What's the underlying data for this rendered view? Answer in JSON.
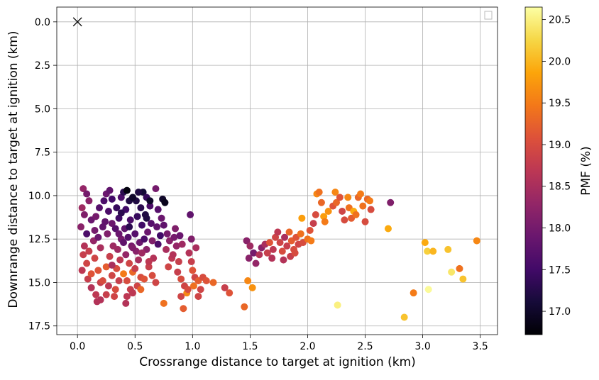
{
  "chart_data": {
    "type": "scatter",
    "title": "",
    "xlabel": "Crossrange distance to target at ignition (km)",
    "ylabel": "Downrange distance to target at ignition (km)",
    "xlim": [
      -0.18,
      3.65
    ],
    "ylim": [
      18.0,
      -0.85
    ],
    "y_inverted": true,
    "grid": true,
    "legend": "top-right (empty)",
    "x_ticks": [
      "0.0",
      "0.5",
      "1.0",
      "1.5",
      "2.0",
      "2.5",
      "3.0",
      "3.5"
    ],
    "y_ticks": [
      "0.0",
      "2.5",
      "5.0",
      "7.5",
      "10.0",
      "12.5",
      "15.0",
      "17.5"
    ],
    "colormap": "inferno",
    "colorbar": {
      "label": "PMF (%)",
      "range": [
        16.72,
        20.65
      ],
      "ticks": [
        "17.0",
        "17.5",
        "18.0",
        "18.5",
        "19.0",
        "19.5",
        "20.0",
        "20.5"
      ]
    },
    "target_marker": {
      "x": 0.0,
      "y": 0.0,
      "symbol": "x"
    },
    "points": [
      [
        0.05,
        9.6,
        18.3
      ],
      [
        0.08,
        9.9,
        18.0
      ],
      [
        0.1,
        10.3,
        18.2
      ],
      [
        0.04,
        10.7,
        18.4
      ],
      [
        0.06,
        11.1,
        18.1
      ],
      [
        0.12,
        11.4,
        17.9
      ],
      [
        0.03,
        11.8,
        18.2
      ],
      [
        0.08,
        12.2,
        17.6
      ],
      [
        0.14,
        12.6,
        18.3
      ],
      [
        0.06,
        12.9,
        18.6
      ],
      [
        0.05,
        13.4,
        18.8
      ],
      [
        0.08,
        13.9,
        18.9
      ],
      [
        0.04,
        14.3,
        18.7
      ],
      [
        0.09,
        14.8,
        18.8
      ],
      [
        0.12,
        15.3,
        18.6
      ],
      [
        0.16,
        15.7,
        18.7
      ],
      [
        0.17,
        16.1,
        18.6
      ],
      [
        0.2,
        15.0,
        18.8
      ],
      [
        0.18,
        14.3,
        19.1
      ],
      [
        0.15,
        13.6,
        18.9
      ],
      [
        0.2,
        13.0,
        18.5
      ],
      [
        0.18,
        12.4,
        17.9
      ],
      [
        0.22,
        11.8,
        17.8
      ],
      [
        0.16,
        11.2,
        18.0
      ],
      [
        0.19,
        10.7,
        17.7
      ],
      [
        0.23,
        10.3,
        17.6
      ],
      [
        0.25,
        9.9,
        17.9
      ],
      [
        0.28,
        9.7,
        17.8
      ],
      [
        0.3,
        10.2,
        17.5
      ],
      [
        0.27,
        10.9,
        17.6
      ],
      [
        0.3,
        11.6,
        17.9
      ],
      [
        0.26,
        12.2,
        18.1
      ],
      [
        0.31,
        12.9,
        18.4
      ],
      [
        0.28,
        13.5,
        18.8
      ],
      [
        0.25,
        14.1,
        19.2
      ],
      [
        0.3,
        14.6,
        18.9
      ],
      [
        0.27,
        15.2,
        18.7
      ],
      [
        0.25,
        15.7,
        18.8
      ],
      [
        0.33,
        15.4,
        19.0
      ],
      [
        0.36,
        14.9,
        18.8
      ],
      [
        0.34,
        14.2,
        19.0
      ],
      [
        0.37,
        13.7,
        18.7
      ],
      [
        0.35,
        13.1,
        18.4
      ],
      [
        0.38,
        12.5,
        18.0
      ],
      [
        0.33,
        11.9,
        17.7
      ],
      [
        0.36,
        11.3,
        17.5
      ],
      [
        0.34,
        10.7,
        17.4
      ],
      [
        0.38,
        10.1,
        17.6
      ],
      [
        0.4,
        9.8,
        17.3
      ],
      [
        0.43,
        9.7,
        16.8
      ],
      [
        0.45,
        10.3,
        17.2
      ],
      [
        0.42,
        10.8,
        17.5
      ],
      [
        0.46,
        11.4,
        17.6
      ],
      [
        0.41,
        11.9,
        17.8
      ],
      [
        0.44,
        12.4,
        17.7
      ],
      [
        0.47,
        12.9,
        18.0
      ],
      [
        0.42,
        13.4,
        18.3
      ],
      [
        0.45,
        13.9,
        18.9
      ],
      [
        0.48,
        14.4,
        19.3
      ],
      [
        0.43,
        14.9,
        19.0
      ],
      [
        0.46,
        15.4,
        18.8
      ],
      [
        0.43,
        15.8,
        18.7
      ],
      [
        0.42,
        16.2,
        18.6
      ],
      [
        0.48,
        15.6,
        18.7
      ],
      [
        0.52,
        15.2,
        18.9
      ],
      [
        0.55,
        14.7,
        19.0
      ],
      [
        0.5,
        14.2,
        18.8
      ],
      [
        0.53,
        13.7,
        18.5
      ],
      [
        0.51,
        13.2,
        18.2
      ],
      [
        0.54,
        12.7,
        17.9
      ],
      [
        0.5,
        12.2,
        17.7
      ],
      [
        0.56,
        11.7,
        17.5
      ],
      [
        0.52,
        11.2,
        17.4
      ],
      [
        0.55,
        10.7,
        17.3
      ],
      [
        0.51,
        10.3,
        17.2
      ],
      [
        0.57,
        9.8,
        17.1
      ],
      [
        0.6,
        10.1,
        17.4
      ],
      [
        0.63,
        10.6,
        17.6
      ],
      [
        0.59,
        11.1,
        17.2
      ],
      [
        0.64,
        11.6,
        17.7
      ],
      [
        0.61,
        12.1,
        17.9
      ],
      [
        0.65,
        12.6,
        18.1
      ],
      [
        0.6,
        13.1,
        18.2
      ],
      [
        0.66,
        13.6,
        18.6
      ],
      [
        0.62,
        14.1,
        18.8
      ],
      [
        0.65,
        14.6,
        19.0
      ],
      [
        0.68,
        15.0,
        18.9
      ],
      [
        0.7,
        12.8,
        17.6
      ],
      [
        0.72,
        12.3,
        17.5
      ],
      [
        0.69,
        11.8,
        17.8
      ],
      [
        0.73,
        11.3,
        17.9
      ],
      [
        0.7,
        10.8,
        17.7
      ],
      [
        0.74,
        10.2,
        17.0
      ],
      [
        0.76,
        10.4,
        16.9
      ],
      [
        0.68,
        9.6,
        18.0
      ],
      [
        0.75,
        11.7,
        17.8
      ],
      [
        0.78,
        12.2,
        18.0
      ],
      [
        0.8,
        12.6,
        18.2
      ],
      [
        0.77,
        13.1,
        18.5
      ],
      [
        0.82,
        13.6,
        18.7
      ],
      [
        0.79,
        14.1,
        18.9
      ],
      [
        0.84,
        12.4,
        18.0
      ],
      [
        0.86,
        12.9,
        18.3
      ],
      [
        0.83,
        13.4,
        18.6
      ],
      [
        0.88,
        13.8,
        18.8
      ],
      [
        0.85,
        11.9,
        18.1
      ],
      [
        0.89,
        12.3,
        17.9
      ],
      [
        0.91,
        12.8,
        18.4
      ],
      [
        0.87,
        14.4,
        18.8
      ],
      [
        0.9,
        14.8,
        19.0
      ],
      [
        0.93,
        15.2,
        18.9
      ],
      [
        0.95,
        15.6,
        19.6
      ],
      [
        0.92,
        16.5,
        19.2
      ],
      [
        0.97,
        13.3,
        18.6
      ],
      [
        0.99,
        13.8,
        18.8
      ],
      [
        1.0,
        14.3,
        19.1
      ],
      [
        1.02,
        14.7,
        18.9
      ],
      [
        0.96,
        15.4,
        19.0
      ],
      [
        1.01,
        15.2,
        19.4
      ],
      [
        1.05,
        14.9,
        19.2
      ],
      [
        1.07,
        15.4,
        18.9
      ],
      [
        1.09,
        14.7,
        19.0
      ],
      [
        1.12,
        14.9,
        19.1
      ],
      [
        1.18,
        15.0,
        19.3
      ],
      [
        1.05,
        15.8,
        18.9
      ],
      [
        0.98,
        11.1,
        17.8
      ],
      [
        0.99,
        12.5,
        18.1
      ],
      [
        1.03,
        13.0,
        18.5
      ],
      [
        0.3,
        14.0,
        18.5
      ],
      [
        0.22,
        14.9,
        19.0
      ],
      [
        0.12,
        14.5,
        19.1
      ],
      [
        0.1,
        13.2,
        18.8
      ],
      [
        0.15,
        12.0,
        18.0
      ],
      [
        0.24,
        11.5,
        17.8
      ],
      [
        0.36,
        12.2,
        17.9
      ],
      [
        0.4,
        12.7,
        17.8
      ],
      [
        0.48,
        13.0,
        18.1
      ],
      [
        0.56,
        13.3,
        18.4
      ],
      [
        0.62,
        13.8,
        18.7
      ],
      [
        0.58,
        14.8,
        19.1
      ],
      [
        0.4,
        14.5,
        19.5
      ],
      [
        0.32,
        15.8,
        18.9
      ],
      [
        0.2,
        16.0,
        18.6
      ],
      [
        0.55,
        15.4,
        19.3
      ],
      [
        0.75,
        16.2,
        19.4
      ],
      [
        0.9,
        15.8,
        18.9
      ],
      [
        1.28,
        15.3,
        18.8
      ],
      [
        1.32,
        15.6,
        19.1
      ],
      [
        1.45,
        16.4,
        19.3
      ],
      [
        1.48,
        14.9,
        19.6
      ],
      [
        1.52,
        15.3,
        19.7
      ],
      [
        1.47,
        12.6,
        18.2
      ],
      [
        1.5,
        12.9,
        18.4
      ],
      [
        1.53,
        13.3,
        18.0
      ],
      [
        1.49,
        13.6,
        18.2
      ],
      [
        1.55,
        13.9,
        18.3
      ],
      [
        1.58,
        13.4,
        18.6
      ],
      [
        1.6,
        13.0,
        18.2
      ],
      [
        1.63,
        12.8,
        18.5
      ],
      [
        1.65,
        13.3,
        18.8
      ],
      [
        1.67,
        12.7,
        19.1
      ],
      [
        1.7,
        13.1,
        18.7
      ],
      [
        1.72,
        12.4,
        18.9
      ],
      [
        1.69,
        13.6,
        18.6
      ],
      [
        1.74,
        12.1,
        18.7
      ],
      [
        1.76,
        12.7,
        18.9
      ],
      [
        1.78,
        13.2,
        19.0
      ],
      [
        1.8,
        12.4,
        18.5
      ],
      [
        1.82,
        12.9,
        18.8
      ],
      [
        1.79,
        13.7,
        18.6
      ],
      [
        1.84,
        12.1,
        19.3
      ],
      [
        1.86,
        12.6,
        19.2
      ],
      [
        1.88,
        13.1,
        19.0
      ],
      [
        1.85,
        13.5,
        18.8
      ],
      [
        1.9,
        12.4,
        19.1
      ],
      [
        1.92,
        12.8,
        18.9
      ],
      [
        1.89,
        13.3,
        19.0
      ],
      [
        1.94,
        12.2,
        19.4
      ],
      [
        1.96,
        12.7,
        19.0
      ],
      [
        1.95,
        11.3,
        19.8
      ],
      [
        2.0,
        12.5,
        19.4
      ],
      [
        2.02,
        12.0,
        19.1
      ],
      [
        2.03,
        12.6,
        19.5
      ],
      [
        2.05,
        11.6,
        18.8
      ],
      [
        2.07,
        11.1,
        19.0
      ],
      [
        2.08,
        9.9,
        19.6
      ],
      [
        2.1,
        9.8,
        19.4
      ],
      [
        2.12,
        10.4,
        19.3
      ],
      [
        2.14,
        11.2,
        19.8
      ],
      [
        2.15,
        11.5,
        19.5
      ],
      [
        2.18,
        10.9,
        19.7
      ],
      [
        2.22,
        10.6,
        19.1
      ],
      [
        2.24,
        9.8,
        19.6
      ],
      [
        2.25,
        10.4,
        19.3
      ],
      [
        2.28,
        10.1,
        19.1
      ],
      [
        2.3,
        10.9,
        18.9
      ],
      [
        2.32,
        11.4,
        19.0
      ],
      [
        2.35,
        10.1,
        19.6
      ],
      [
        2.36,
        10.7,
        19.4
      ],
      [
        2.38,
        11.3,
        19.2
      ],
      [
        2.4,
        10.9,
        19.9
      ],
      [
        2.42,
        11.1,
        19.4
      ],
      [
        2.44,
        10.1,
        19.3
      ],
      [
        2.46,
        9.9,
        19.5
      ],
      [
        2.48,
        10.6,
        19.4
      ],
      [
        2.5,
        11.5,
        19.0
      ],
      [
        2.52,
        10.2,
        19.3
      ],
      [
        2.54,
        10.3,
        19.5
      ],
      [
        2.55,
        10.8,
        19.0
      ],
      [
        2.72,
        10.4,
        18.1
      ],
      [
        2.7,
        11.9,
        19.9
      ],
      [
        2.26,
        16.3,
        20.5
      ],
      [
        2.84,
        17.0,
        20.1
      ],
      [
        2.92,
        15.6,
        19.5
      ],
      [
        3.02,
        12.7,
        19.9
      ],
      [
        3.04,
        13.2,
        20.2
      ],
      [
        3.05,
        15.4,
        20.6
      ],
      [
        3.09,
        13.2,
        20.0
      ],
      [
        3.22,
        13.1,
        20.1
      ],
      [
        3.25,
        14.4,
        20.4
      ],
      [
        3.32,
        14.2,
        19.4
      ],
      [
        3.35,
        14.8,
        20.1
      ],
      [
        3.47,
        12.6,
        19.6
      ],
      [
        0.63,
        10.3,
        17.0
      ],
      [
        0.53,
        9.8,
        17.2
      ],
      [
        0.48,
        10.1,
        17.0
      ],
      [
        0.38,
        11.0,
        17.3
      ],
      [
        0.6,
        11.3,
        17.2
      ],
      [
        0.45,
        11.8,
        17.3
      ],
      [
        0.58,
        12.5,
        17.6
      ]
    ]
  }
}
